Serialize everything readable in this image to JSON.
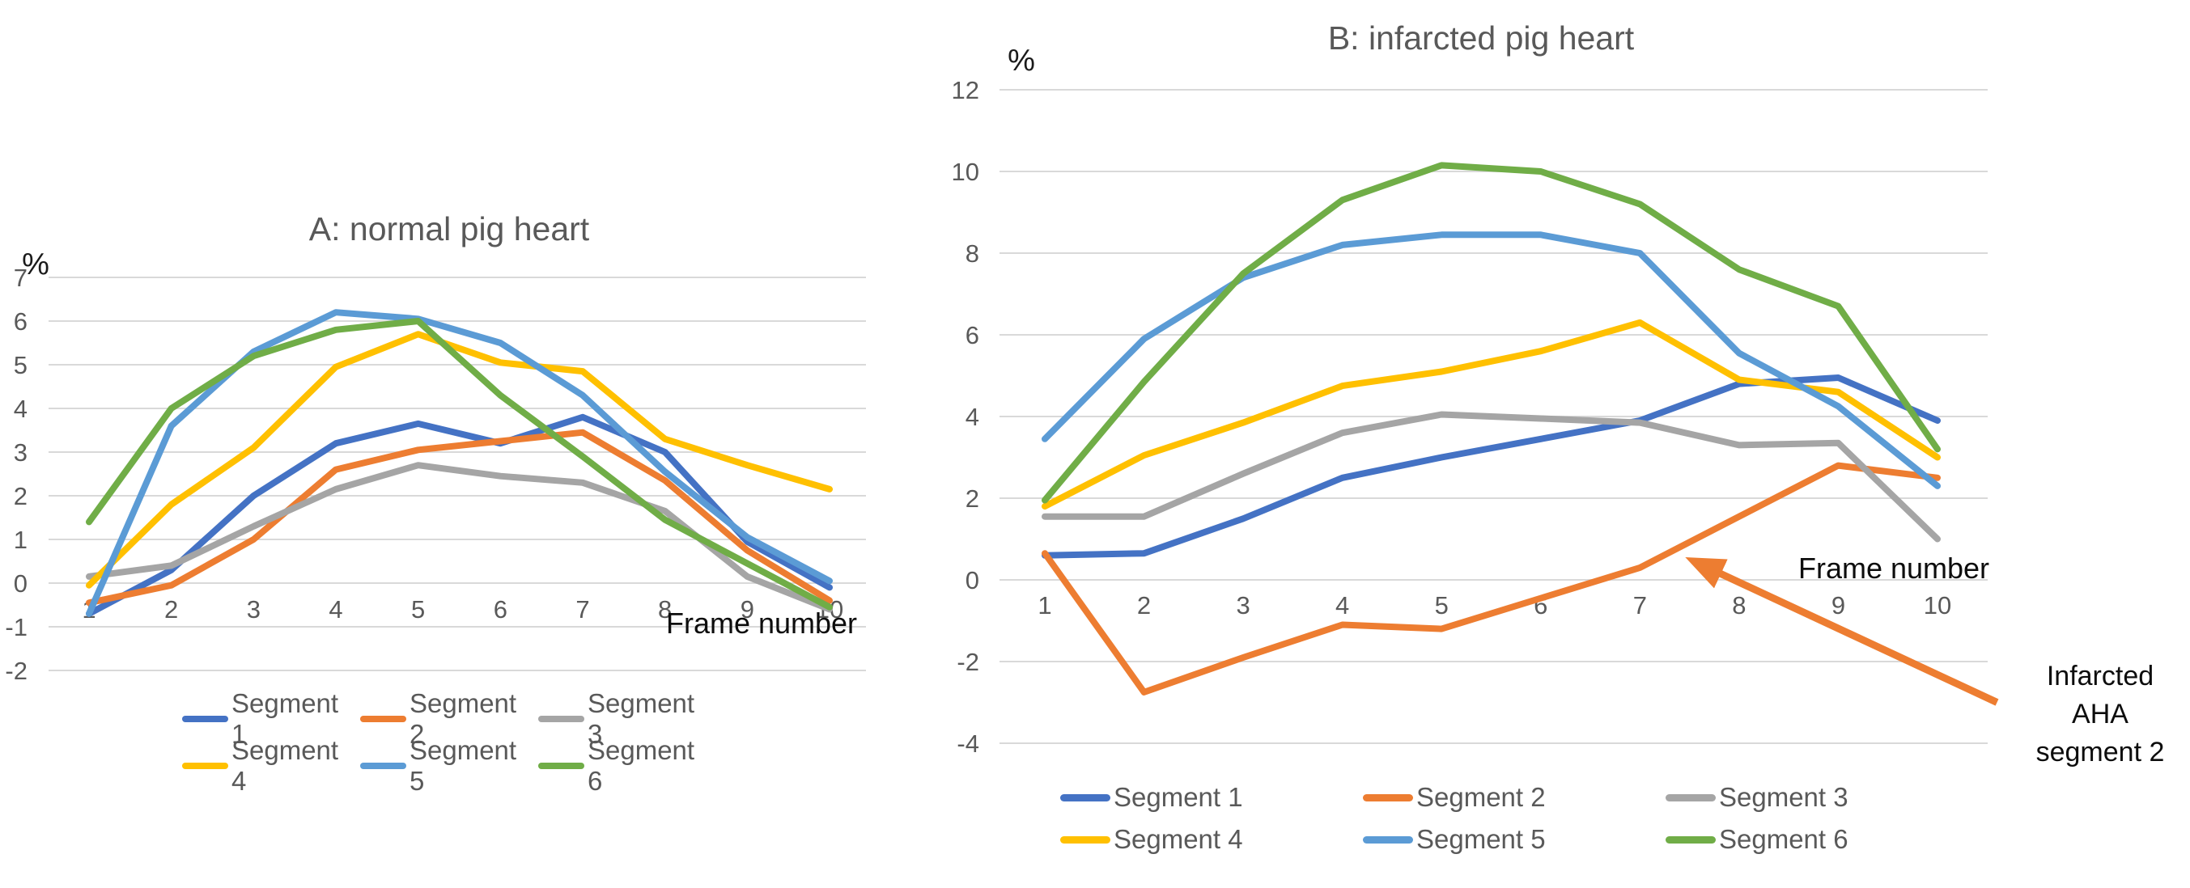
{
  "figure": {
    "background": "#ffffff",
    "gridline_color": "#D9D9D9",
    "axis_text_color": "#595959",
    "title_color": "#595959",
    "black_text_color": "#0d0d0d"
  },
  "chart_data": [
    {
      "id": "A",
      "type": "line",
      "title": "A: normal pig heart",
      "y_axis_unit": "%",
      "x_axis_label": "Frame number",
      "categories": [
        "1",
        "2",
        "3",
        "4",
        "5",
        "6",
        "7",
        "8",
        "9",
        "10"
      ],
      "y_ticks": [
        7,
        6,
        5,
        4,
        3,
        2,
        1,
        0,
        -1,
        -2
      ],
      "ylim": [
        -2,
        7
      ],
      "grid": true,
      "legend_position": "bottom",
      "series": [
        {
          "name": "Segment 1",
          "color": "#4472C4",
          "values": [
            -0.7,
            0.3,
            2.0,
            3.2,
            3.65,
            3.2,
            3.8,
            3.0,
            0.95,
            -0.1
          ]
        },
        {
          "name": "Segment 2",
          "color": "#ED7D31",
          "values": [
            -0.45,
            -0.05,
            1.0,
            2.6,
            3.05,
            3.25,
            3.45,
            2.35,
            0.75,
            -0.4
          ]
        },
        {
          "name": "Segment 3",
          "color": "#A5A5A5",
          "values": [
            0.15,
            0.4,
            1.3,
            2.15,
            2.7,
            2.45,
            2.3,
            1.65,
            0.15,
            -0.6
          ]
        },
        {
          "name": "Segment 4",
          "color": "#FFC000",
          "values": [
            -0.05,
            1.8,
            3.1,
            4.95,
            5.7,
            5.05,
            4.85,
            3.3,
            2.7,
            2.15
          ]
        },
        {
          "name": "Segment 5",
          "color": "#5B9BD5",
          "values": [
            -0.7,
            3.6,
            5.3,
            6.2,
            6.05,
            5.5,
            4.3,
            2.55,
            1.05,
            0.05
          ]
        },
        {
          "name": "Segment 6",
          "color": "#70AD47",
          "values": [
            1.4,
            4.0,
            5.2,
            5.8,
            6.0,
            4.3,
            2.9,
            1.45,
            0.45,
            -0.55
          ]
        }
      ]
    },
    {
      "id": "B",
      "type": "line",
      "title": "B: infarcted pig heart",
      "y_axis_unit": "%",
      "x_axis_label": "Frame number",
      "categories": [
        "1",
        "2",
        "3",
        "4",
        "5",
        "6",
        "7",
        "8",
        "9",
        "10"
      ],
      "y_ticks": [
        12,
        10,
        8,
        6,
        4,
        2,
        0,
        -2,
        -4
      ],
      "ylim": [
        -4,
        12
      ],
      "grid": true,
      "legend_position": "bottom",
      "series": [
        {
          "name": "Segment 1",
          "color": "#4472C4",
          "values": [
            0.6,
            0.65,
            1.5,
            2.5,
            3.0,
            3.45,
            3.9,
            4.8,
            4.95,
            3.9
          ]
        },
        {
          "name": "Segment 2",
          "color": "#ED7D31",
          "values": [
            0.65,
            -2.75,
            -1.9,
            -1.1,
            -1.2,
            -0.45,
            0.3,
            1.55,
            2.8,
            2.5
          ]
        },
        {
          "name": "Segment 3",
          "color": "#A5A5A5",
          "values": [
            1.55,
            1.55,
            2.6,
            3.6,
            4.05,
            3.95,
            3.85,
            3.3,
            3.35,
            1.0
          ]
        },
        {
          "name": "Segment 4",
          "color": "#FFC000",
          "values": [
            1.8,
            3.05,
            3.85,
            4.75,
            5.1,
            5.6,
            6.3,
            4.9,
            4.6,
            3.0
          ]
        },
        {
          "name": "Segment 5",
          "color": "#5B9BD5",
          "values": [
            3.45,
            5.9,
            7.4,
            8.2,
            8.45,
            8.45,
            8.0,
            5.55,
            4.25,
            2.3
          ]
        },
        {
          "name": "Segment 6",
          "color": "#70AD47",
          "values": [
            1.95,
            4.85,
            7.5,
            9.3,
            10.15,
            10.0,
            9.2,
            7.6,
            6.7,
            3.2
          ]
        }
      ],
      "annotation": {
        "lines": [
          "Infarcted",
          "AHA",
          "segment 2"
        ],
        "target_series": "Segment 2",
        "color": "#ED7D31",
        "arrow": {
          "from": [
            10.6,
            -3.0
          ],
          "to": [
            7.55,
            0.45
          ]
        }
      }
    }
  ]
}
